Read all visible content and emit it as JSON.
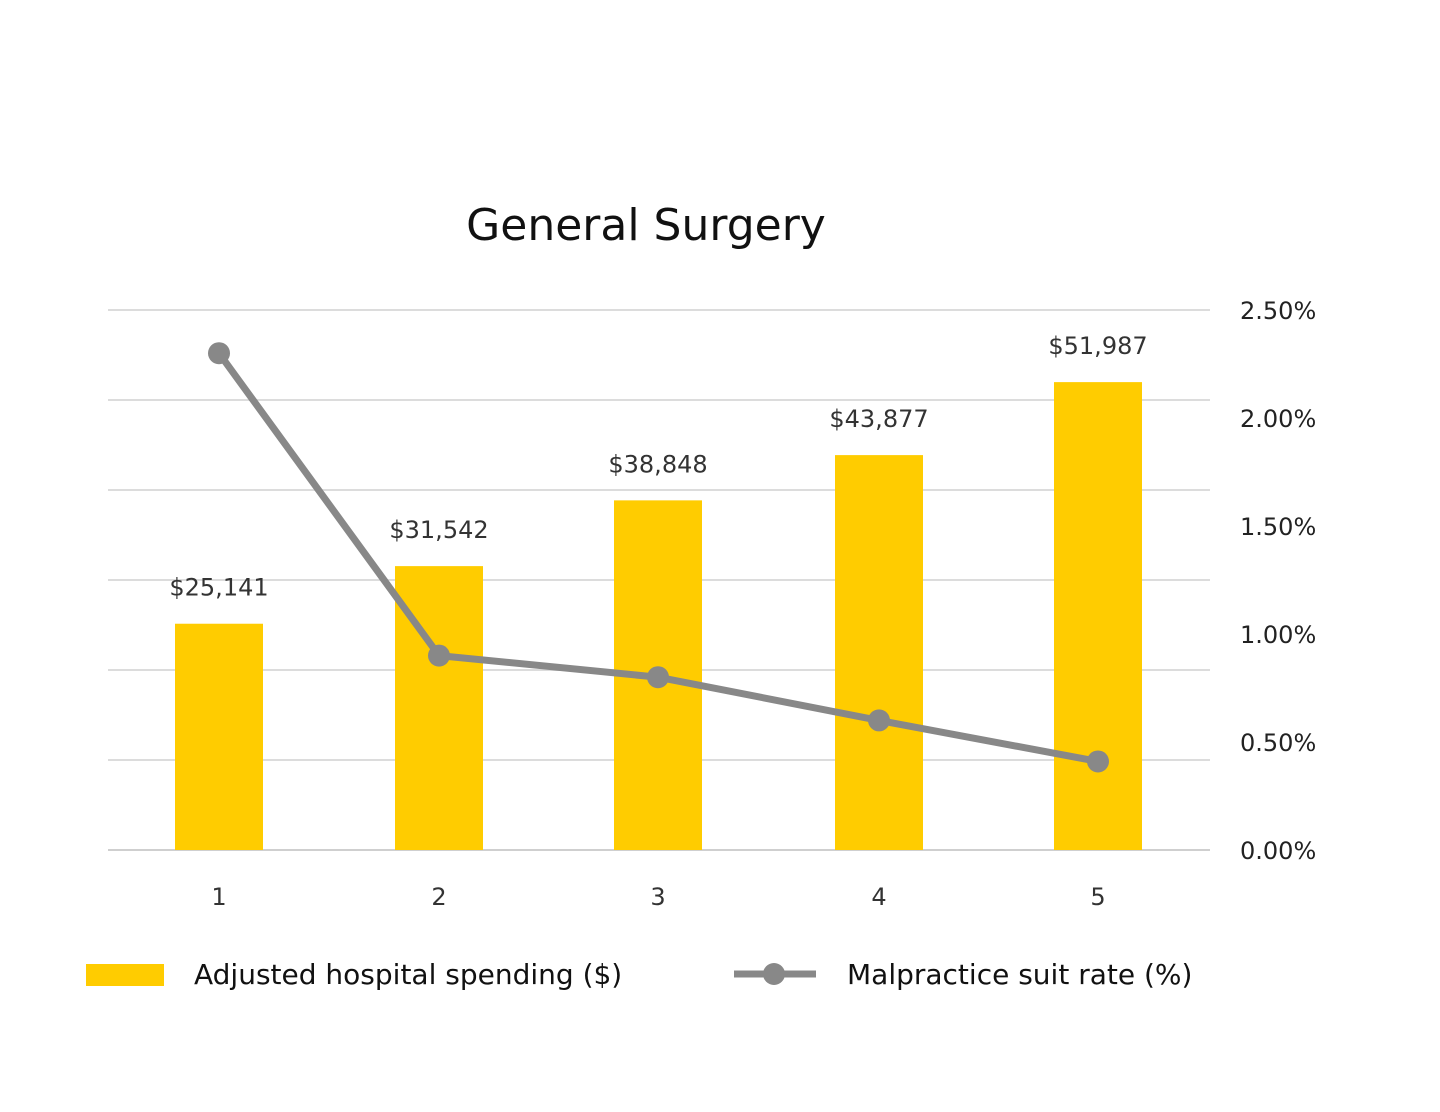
{
  "chart_data": {
    "type": "bar",
    "title": "General Surgery",
    "categories": [
      "1",
      "2",
      "3",
      "4",
      "5"
    ],
    "series": [
      {
        "name": "Adjusted hospital spending ($)",
        "kind": "bar",
        "axis": "left",
        "color": "#FFCC00",
        "values": [
          25141,
          31542,
          38848,
          43877,
          51987
        ],
        "labels": [
          "$25,141",
          "$31,542",
          "$38,848",
          "$43,877",
          "$51,987"
        ]
      },
      {
        "name": "Malpractice suit rate (%)",
        "kind": "line",
        "axis": "right",
        "color": "#888888",
        "values": [
          2.3,
          0.9,
          0.8,
          0.6,
          0.41
        ]
      }
    ],
    "left_axis": {
      "ylim": [
        0,
        60000
      ],
      "step": 10000,
      "visible_labels": false
    },
    "right_axis": {
      "ylim": [
        0,
        2.5
      ],
      "ticks": [
        "0.00%",
        "0.50%",
        "1.00%",
        "1.50%",
        "2.00%",
        "2.50%"
      ]
    },
    "xlabel": "",
    "grid": true,
    "legend": "bottom"
  }
}
